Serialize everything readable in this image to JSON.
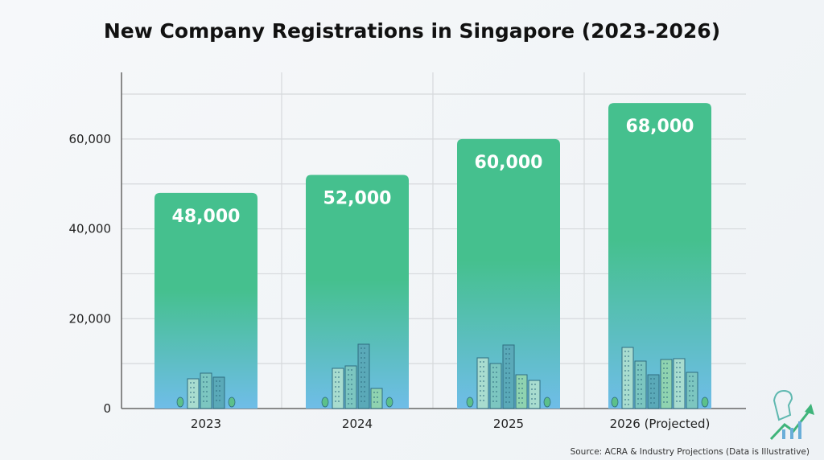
{
  "chart_data": {
    "type": "bar",
    "title": "New Company Registrations in Singapore (2023-2026)",
    "categories": [
      "2023",
      "2024",
      "2025",
      "2026 (Projected)"
    ],
    "values": [
      48000,
      52000,
      60000,
      68000
    ],
    "data_labels": [
      "48,000",
      "52,000",
      "60,000",
      "68,000"
    ],
    "xlabel": "",
    "ylabel": "",
    "ylim": [
      0,
      70000
    ],
    "yticks": [
      0,
      20000,
      40000,
      60000
    ],
    "ytick_labels": [
      "0",
      "20,000",
      "40,000",
      "60,000"
    ],
    "grid": true,
    "colors": {
      "bar_top": "#45c08e",
      "bar_bottom": "#6fbde8"
    },
    "source": "Source: ACRA & Industry Projections (Data is Illustrative)"
  }
}
